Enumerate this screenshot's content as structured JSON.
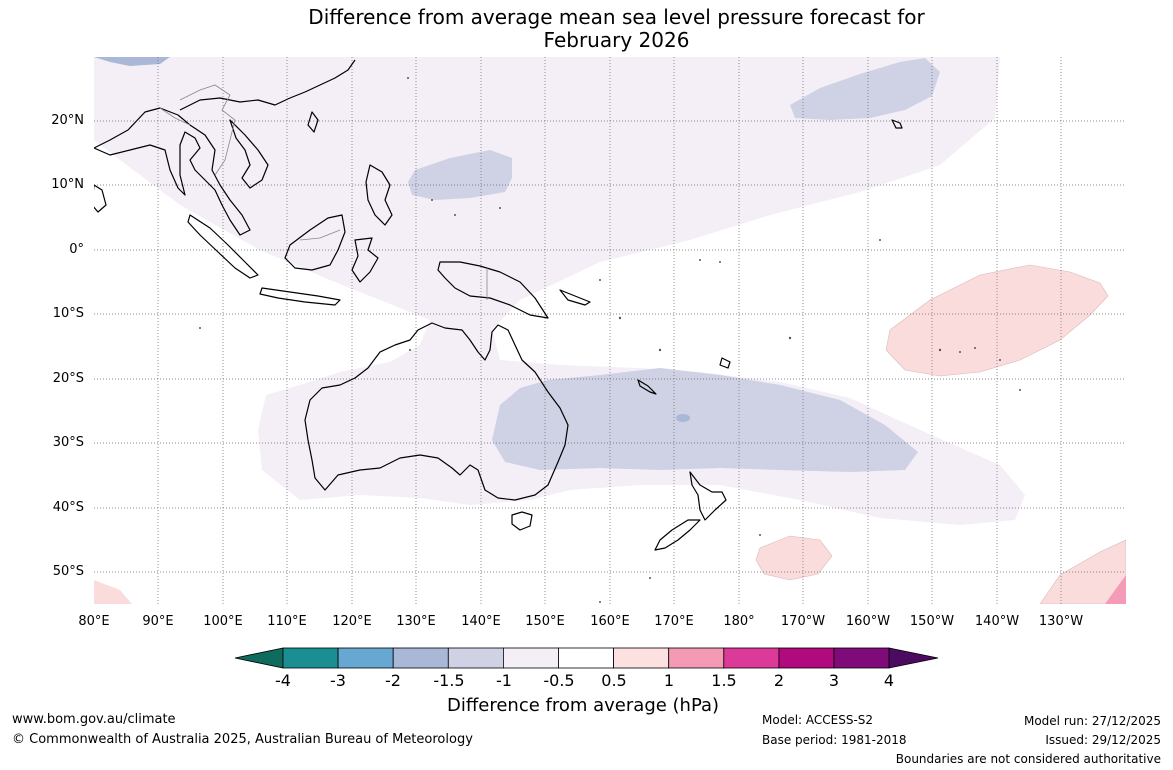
{
  "title": {
    "line1": "Difference from average mean sea level pressure forecast for",
    "line2": "February 2026"
  },
  "map": {
    "latitude_labels": [
      "20°N",
      "10°N",
      "0°",
      "10°S",
      "20°S",
      "30°S",
      "40°S",
      "50°S"
    ],
    "longitude_labels": [
      "80°E",
      "90°E",
      "100°E",
      "110°E",
      "120°E",
      "130°E",
      "140°E",
      "150°E",
      "160°E",
      "170°E",
      "180°",
      "170°W",
      "160°W",
      "150°W",
      "140°W",
      "130°W"
    ],
    "region": "Australia and the western Pacific",
    "anomaly_areas": [
      {
        "region": "Eastern Australia to Tasman Sea",
        "range": "-1.5 to -1",
        "color": "#cfd1e4"
      },
      {
        "region": "Western Pacific north of equator",
        "range": "-1.5 to -1",
        "color": "#cfd1e4"
      },
      {
        "region": "North Pacific near Hawaii",
        "range": "-1.5 to -1",
        "color": "#cfd1e4"
      },
      {
        "region": "South Pacific near French Polynesia",
        "range": "0.5 to 1",
        "color": "#fbdcdc"
      },
      {
        "region": "Southern Ocean south of New Zealand",
        "range": "0.5 to 1",
        "color": "#fbdcdc"
      },
      {
        "region": "Far south-east Pacific",
        "range": "1 to 1.5",
        "color": "#f49bb8"
      },
      {
        "region": "Broad western Pacific band",
        "range": "-1 to -0.5",
        "color": "#f4eef7"
      }
    ]
  },
  "colorbar": {
    "ticks": [
      "-4",
      "-3",
      "-2",
      "-1.5",
      "-1",
      "-0.5",
      "0.5",
      "1",
      "1.5",
      "2",
      "3",
      "4"
    ],
    "colors": [
      "#0f6b5d",
      "#1a8e93",
      "#66a8d1",
      "#a9b8d6",
      "#cfd1e4",
      "#f4eef7",
      "#ffffff",
      "#fde0e0",
      "#f59ab5",
      "#dc3a99",
      "#b1097e",
      "#7f0b7a",
      "#4d0a61"
    ],
    "label": "Difference from average (hPa)"
  },
  "footer": {
    "url": "www.bom.gov.au/climate",
    "copyright": "© Commonwealth of Australia 2025, Australian Bureau of Meteorology",
    "model": "Model: ACCESS-S2",
    "base_period": "Base period: 1981-2018",
    "model_run": "Model run: 27/12/2025",
    "issued": "Issued: 29/12/2025",
    "disclaimer": "Boundaries are not considered authoritative"
  }
}
